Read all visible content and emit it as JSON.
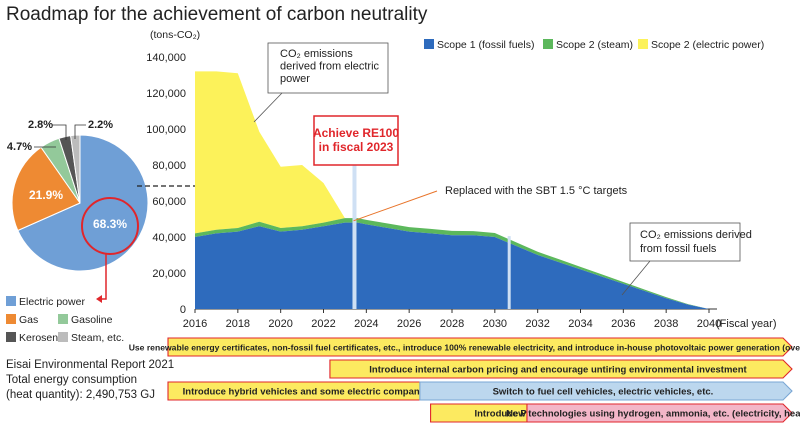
{
  "title": "Roadmap for the achievement of carbon neutrality",
  "colors": {
    "scope1": "#2e6bbd",
    "scope2_steam": "#5cb85c",
    "scope2_electric": "#fcf25a",
    "pie_electric": "#6f9fd6",
    "pie_gas": "#ee8a33",
    "pie_gasoline": "#93c99a",
    "pie_kerosene": "#555555",
    "pie_steam": "#bcbcbc",
    "red": "#e0262b",
    "bar_yellow": "#fcea60",
    "bar_blue": "#bcd7ee",
    "bar_pink": "#f3b6c8"
  },
  "chart_data": [
    {
      "type": "area",
      "title": "",
      "ylabel": "(tons-CO₂)",
      "xlabel": "(Fiscal year)",
      "ylim": [
        0,
        140000
      ],
      "xlim": [
        2016,
        2040
      ],
      "x_ticks": [
        "2016",
        "2018",
        "2020",
        "2022",
        "2024",
        "2026",
        "2028",
        "2030",
        "2032",
        "2034",
        "2036",
        "2038",
        "2040"
      ],
      "y_ticks": [
        "0",
        "20,000",
        "40,000",
        "60,000",
        "80,000",
        "100,000",
        "120,000",
        "140,000"
      ],
      "legend_position": "top-right",
      "legend": [
        "Scope 1 (fossil fuels)",
        "Scope 2 (steam)",
        "Scope 2 (electric power)"
      ],
      "x": [
        2016,
        2017,
        2018,
        2019,
        2020,
        2021,
        2022,
        2023,
        2023.6,
        2024,
        2025,
        2026,
        2027,
        2028,
        2029,
        2030,
        2031,
        2032,
        2033,
        2034,
        2035,
        2036,
        2037,
        2038,
        2039,
        2040
      ],
      "series": [
        {
          "name": "Scope 1 (fossil fuels)",
          "values": [
            40000,
            42000,
            43000,
            46000,
            43000,
            44000,
            46000,
            48000,
            48000,
            47000,
            45000,
            43000,
            42000,
            41000,
            41000,
            40000,
            35000,
            30000,
            26000,
            22000,
            18000,
            14000,
            10000,
            6000,
            2500,
            0
          ]
        },
        {
          "name": "Scope 2 (steam)",
          "values": [
            2000,
            2000,
            2000,
            2500,
            2000,
            2000,
            2000,
            2500,
            2500,
            2500,
            2500,
            2500,
            2500,
            2400,
            2300,
            2200,
            2000,
            1800,
            1600,
            1400,
            1200,
            1000,
            800,
            600,
            300,
            0
          ]
        },
        {
          "name": "Scope 2 (electric power)",
          "values": [
            90000,
            88000,
            86000,
            50000,
            34000,
            34000,
            22000,
            0,
            0,
            0,
            0,
            0,
            0,
            0,
            0,
            0,
            0,
            0,
            0,
            0,
            0,
            0,
            0,
            0,
            0,
            0
          ]
        }
      ],
      "annotations": {
        "electric_note": "CO₂ emissions derived from electric power",
        "re100_line1": "Achieve RE100",
        "re100_line2": "in fiscal 2023",
        "sbt_note": "Replaced with the SBT 1.5 °C targets",
        "fossil_note": "CO₂ emissions derived from fossil fuels"
      }
    },
    {
      "type": "pie",
      "labels": [
        "Electric power",
        "Gas",
        "Gasoline",
        "Kerosene",
        "Steam, etc."
      ],
      "values": [
        68.3,
        21.9,
        4.7,
        2.8,
        2.2
      ],
      "value_labels": [
        "68.3%",
        "21.9%",
        "4.7%",
        "2.8%",
        "2.2%"
      ]
    }
  ],
  "note": {
    "line1": "Eisai Environmental Report 2021",
    "line2": "Total energy consumption",
    "line3": "(heat quantity): 2,490,753 GJ"
  },
  "roadmap": [
    {
      "label": "Use renewable energy certificates, non-fossil fuel certificates, etc., introduce 100% renewable electricity, and introduce in-house photovoltaic power generation (overseas)",
      "color": "bar_yellow",
      "x_start": 2016,
      "x_end": 2041.2,
      "row": 0
    },
    {
      "label": "Introduce internal carbon pricing and encourage untiring environmental investment",
      "color": "bar_yellow",
      "x_start": 2022.3,
      "x_end": 2041.2,
      "row": 1
    },
    {
      "label": "Introduce hybrid vehicles and some electric company vehicles",
      "color": "bar_yellow",
      "x_start": 2016,
      "x_end": 2026.4,
      "row": 2
    },
    {
      "label": "Switch to fuel cell vehicles, electric vehicles, etc.",
      "color": "bar_blue",
      "x_start": 2026.5,
      "x_end": 2041.2,
      "row": 2
    },
    {
      "label": "Introduce PPA*",
      "color": "bar_yellow",
      "x_start": 2027,
      "x_end": 2031.4,
      "row": 3
    },
    {
      "label": "New technologies using hydrogen, ammonia, etc. (electricity, heat)",
      "color": "bar_pink",
      "x_start": 2031.5,
      "x_end": 2041.2,
      "row": 3
    }
  ]
}
